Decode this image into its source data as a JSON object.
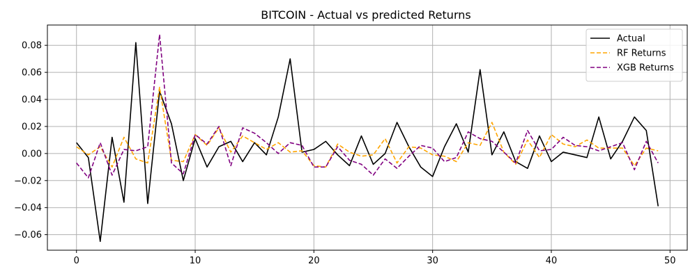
{
  "chart_data": {
    "type": "line",
    "title": "BITCOIN - Actual vs predicted Returns",
    "xlabel": "",
    "ylabel": "",
    "xlim": [
      -2.45,
      51.45
    ],
    "ylim": [
      -0.0715,
      0.095
    ],
    "grid": true,
    "legend_position": "top-right",
    "x_ticks": [
      0,
      10,
      20,
      30,
      40,
      50
    ],
    "x_tick_labels": [
      "0",
      "10",
      "20",
      "30",
      "40",
      "50"
    ],
    "y_ticks": [
      -0.06,
      -0.04,
      -0.02,
      0.0,
      0.02,
      0.04,
      0.06,
      0.08
    ],
    "y_tick_labels": [
      "−0.06",
      "−0.04",
      "−0.02",
      "0.00",
      "0.02",
      "0.04",
      "0.06",
      "0.08"
    ],
    "x": [
      0,
      1,
      2,
      3,
      4,
      5,
      6,
      7,
      8,
      9,
      10,
      11,
      12,
      13,
      14,
      15,
      16,
      17,
      18,
      19,
      20,
      21,
      22,
      23,
      24,
      25,
      26,
      27,
      28,
      29,
      30,
      31,
      32,
      33,
      34,
      35,
      36,
      37,
      38,
      39,
      40,
      41,
      42,
      43,
      44,
      45,
      46,
      47,
      48,
      49
    ],
    "series": [
      {
        "name": "Actual",
        "color": "#000000",
        "dash": "solid",
        "values": [
          0.008,
          -0.003,
          -0.065,
          0.012,
          -0.036,
          0.082,
          -0.037,
          0.046,
          0.022,
          -0.02,
          0.011,
          -0.01,
          0.005,
          0.009,
          -0.006,
          0.008,
          -0.001,
          0.027,
          0.07,
          0.001,
          0.003,
          0.009,
          -0.001,
          -0.009,
          0.013,
          -0.008,
          0.0,
          0.023,
          0.005,
          -0.01,
          -0.017,
          0.005,
          0.022,
          0.001,
          0.062,
          -0.001,
          0.016,
          -0.006,
          -0.011,
          0.013,
          -0.006,
          0.001,
          -0.001,
          -0.003,
          0.027,
          -0.004,
          0.009,
          0.027,
          0.017,
          -0.039
        ]
      },
      {
        "name": "RF Returns",
        "color": "#FFA500",
        "dash": "dashed",
        "values": [
          0.005,
          -0.001,
          0.005,
          -0.01,
          0.012,
          -0.004,
          -0.007,
          0.049,
          -0.005,
          -0.006,
          0.014,
          0.006,
          0.019,
          0.001,
          0.013,
          0.008,
          0.003,
          0.008,
          0.001,
          0.002,
          -0.009,
          -0.01,
          0.007,
          0.001,
          -0.002,
          -0.001,
          0.011,
          -0.007,
          0.005,
          0.004,
          -0.001,
          -0.002,
          -0.006,
          0.008,
          0.006,
          0.023,
          0.001,
          -0.008,
          0.01,
          -0.003,
          0.014,
          0.007,
          0.005,
          0.01,
          0.004,
          0.004,
          0.004,
          -0.009,
          0.004,
          0.002
        ]
      },
      {
        "name": "XGB Returns",
        "color": "#800080",
        "dash": "dashed",
        "values": [
          -0.007,
          -0.018,
          0.008,
          -0.016,
          0.003,
          0.002,
          0.005,
          0.088,
          -0.007,
          -0.015,
          0.014,
          0.007,
          0.02,
          -0.009,
          0.019,
          0.015,
          0.008,
          0.0,
          0.008,
          0.006,
          -0.01,
          -0.01,
          0.005,
          -0.005,
          -0.008,
          -0.016,
          -0.004,
          -0.011,
          -0.002,
          0.006,
          0.004,
          -0.006,
          -0.003,
          0.016,
          0.011,
          0.009,
          0.001,
          -0.007,
          0.017,
          0.002,
          0.003,
          0.012,
          0.006,
          0.005,
          0.002,
          0.005,
          0.008,
          -0.012,
          0.009,
          -0.007
        ]
      }
    ]
  }
}
